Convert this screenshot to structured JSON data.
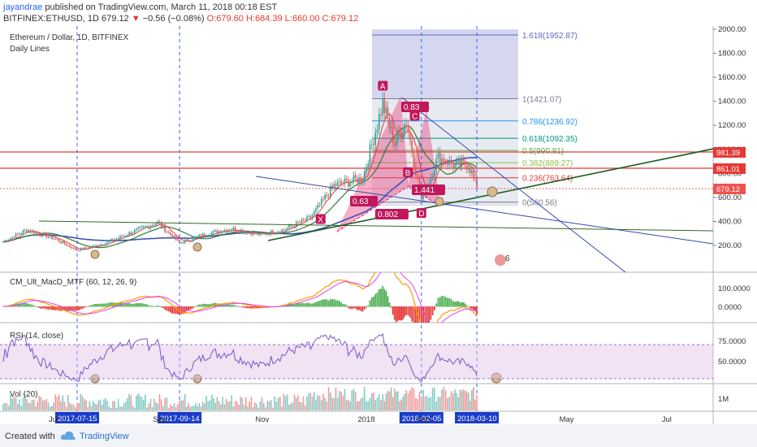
{
  "header": {
    "author": "jayandrae",
    "published": "published on TradingView.com, March 11, 2018 00:18 EST",
    "symbol": "BITFINEX:ETHUSD, 1D",
    "last": "679.12",
    "change_arrow": "▼",
    "change": "−0.56 (−0.08%)",
    "open": "O:679.60",
    "high": "H:684.39",
    "low": "L:660.00",
    "close": "C:679.12"
  },
  "chart_data": {
    "type": "line",
    "title": "Ethereum / Dollar, 1D, BITFINEX",
    "subtitle": "Daily Lines",
    "y_axis": {
      "ticks": [
        "2000.00",
        "1800.00",
        "1600.00",
        "1400.00",
        "1200.00",
        "1000.00",
        "800.00",
        "600.00",
        "400.00",
        "200.00"
      ],
      "ylim": [
        0,
        2050
      ]
    },
    "x_axis": {
      "tick_labels": [
        "Jul",
        "Sep",
        "Nov",
        "2018",
        "Feb",
        "May",
        "Jul"
      ],
      "highlight_dates": [
        "2017-07-15",
        "2017-09-14",
        "2018-02-05",
        "2018-03-10"
      ]
    },
    "price_series": {
      "name": "ETHUSD",
      "x": [
        "2017-06-01",
        "2017-06-15",
        "2017-07-01",
        "2017-07-15",
        "2017-08-01",
        "2017-08-15",
        "2017-09-01",
        "2017-09-14",
        "2017-10-01",
        "2017-10-15",
        "2017-11-01",
        "2017-11-15",
        "2017-12-01",
        "2017-12-15",
        "2018-01-01",
        "2018-01-13",
        "2018-01-20",
        "2018-01-27",
        "2018-02-05",
        "2018-02-15",
        "2018-02-25",
        "2018-03-05",
        "2018-03-10"
      ],
      "y": [
        230,
        330,
        260,
        160,
        220,
        300,
        390,
        220,
        300,
        340,
        290,
        330,
        430,
        700,
        760,
        1380,
        1050,
        1240,
        580,
        940,
        860,
        880,
        679.12
      ]
    },
    "price_labels": {
      "red_level_1": "981.39",
      "red_level_2": "861.01",
      "last_price": "679.12"
    },
    "fibonacci_levels": [
      {
        "label": "1.618(1952.87)",
        "value": 1952.87,
        "color": "#5c6bc0"
      },
      {
        "label": "1(1421.07)",
        "value": 1421.07,
        "color": "#787b86"
      },
      {
        "label": "0.786(1236.92)",
        "value": 1236.92,
        "color": "#2196f3"
      },
      {
        "label": "0.618(1092.35)",
        "value": 1092.35,
        "color": "#009688"
      },
      {
        "label": "0.5(990.81)",
        "value": 990.81,
        "color": "#4caf50"
      },
      {
        "label": "0.382(889.27)",
        "value": 889.27,
        "color": "#8bc34a"
      },
      {
        "label": "0.236(763.64)",
        "value": 763.64,
        "color": "#e53935"
      },
      {
        "label": "0(560.56)",
        "value": 560.56,
        "color": "#787b86"
      }
    ],
    "pattern_points": [
      {
        "label": "X",
        "date": "2017-12-07",
        "value": 420
      },
      {
        "label": "A",
        "date": "2018-01-13",
        "value": 1530
      },
      {
        "label": "B",
        "date": "2018-01-28",
        "value": 810
      },
      {
        "label": "C",
        "date": "2018-02-01",
        "value": 1280
      },
      {
        "label": "D",
        "date": "2018-02-05",
        "value": 470
      }
    ],
    "pattern_ratios": [
      "0.63",
      "0.83",
      "1.441",
      "0.802"
    ],
    "event_badge": "6",
    "indicators": {
      "macd": {
        "name": "CM_Ult_MacD_MTF (60, 12, 26, 9)",
        "ticks": [
          "100.0000",
          "0.0000"
        ]
      },
      "rsi": {
        "name": "RSI (14, close)",
        "ticks": [
          "75.0000",
          "50.0000"
        ]
      },
      "volume": {
        "name": "Vol (20)",
        "ticks": [
          "1M"
        ]
      }
    }
  },
  "footer": {
    "created_with": "Created with",
    "brand": "TradingView"
  }
}
